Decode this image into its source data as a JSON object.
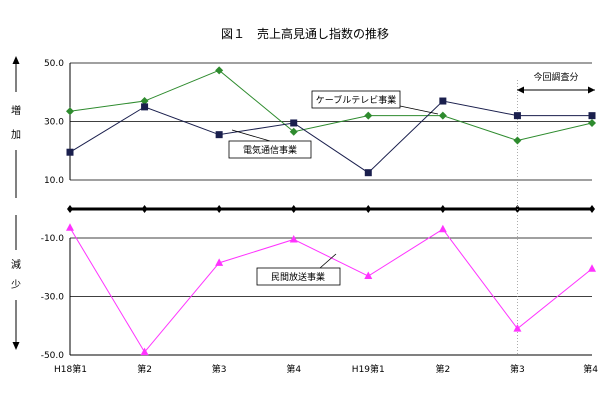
{
  "chart_data": {
    "type": "line",
    "title": "図１　売上高見通し指数の推移",
    "categories": [
      "H18第1",
      "第2",
      "第3",
      "第4",
      "H19第1",
      "第2",
      "第3",
      "第4"
    ],
    "yticks": [
      "50.0",
      "30.0",
      "10.0",
      "-10.0",
      "-30.0",
      "-50.0"
    ],
    "ylim": [
      -50,
      50
    ],
    "axis_break": true,
    "side_labels": {
      "increase_1": "増",
      "increase_2": "加",
      "decrease_1": "減",
      "decrease_2": "少"
    },
    "forecast_label": "今回調査分",
    "series": [
      {
        "name": "ケーブルテレビ事業",
        "marker": "diamond",
        "color": "#2e8b2e",
        "values": [
          33.5,
          37,
          47.5,
          26.5,
          32,
          32,
          23.5,
          29.5
        ]
      },
      {
        "name": "電気通信事業",
        "marker": "square",
        "color": "#1a1f4d",
        "values": [
          19.5,
          35,
          25.5,
          29.5,
          12.5,
          37,
          32,
          32
        ]
      },
      {
        "name": "民間放送事業",
        "marker": "triangle",
        "color": "#ff33ff",
        "values": [
          -6.5,
          -49,
          -18.5,
          -10.5,
          -23,
          -7,
          -41,
          -20.5
        ]
      }
    ]
  }
}
